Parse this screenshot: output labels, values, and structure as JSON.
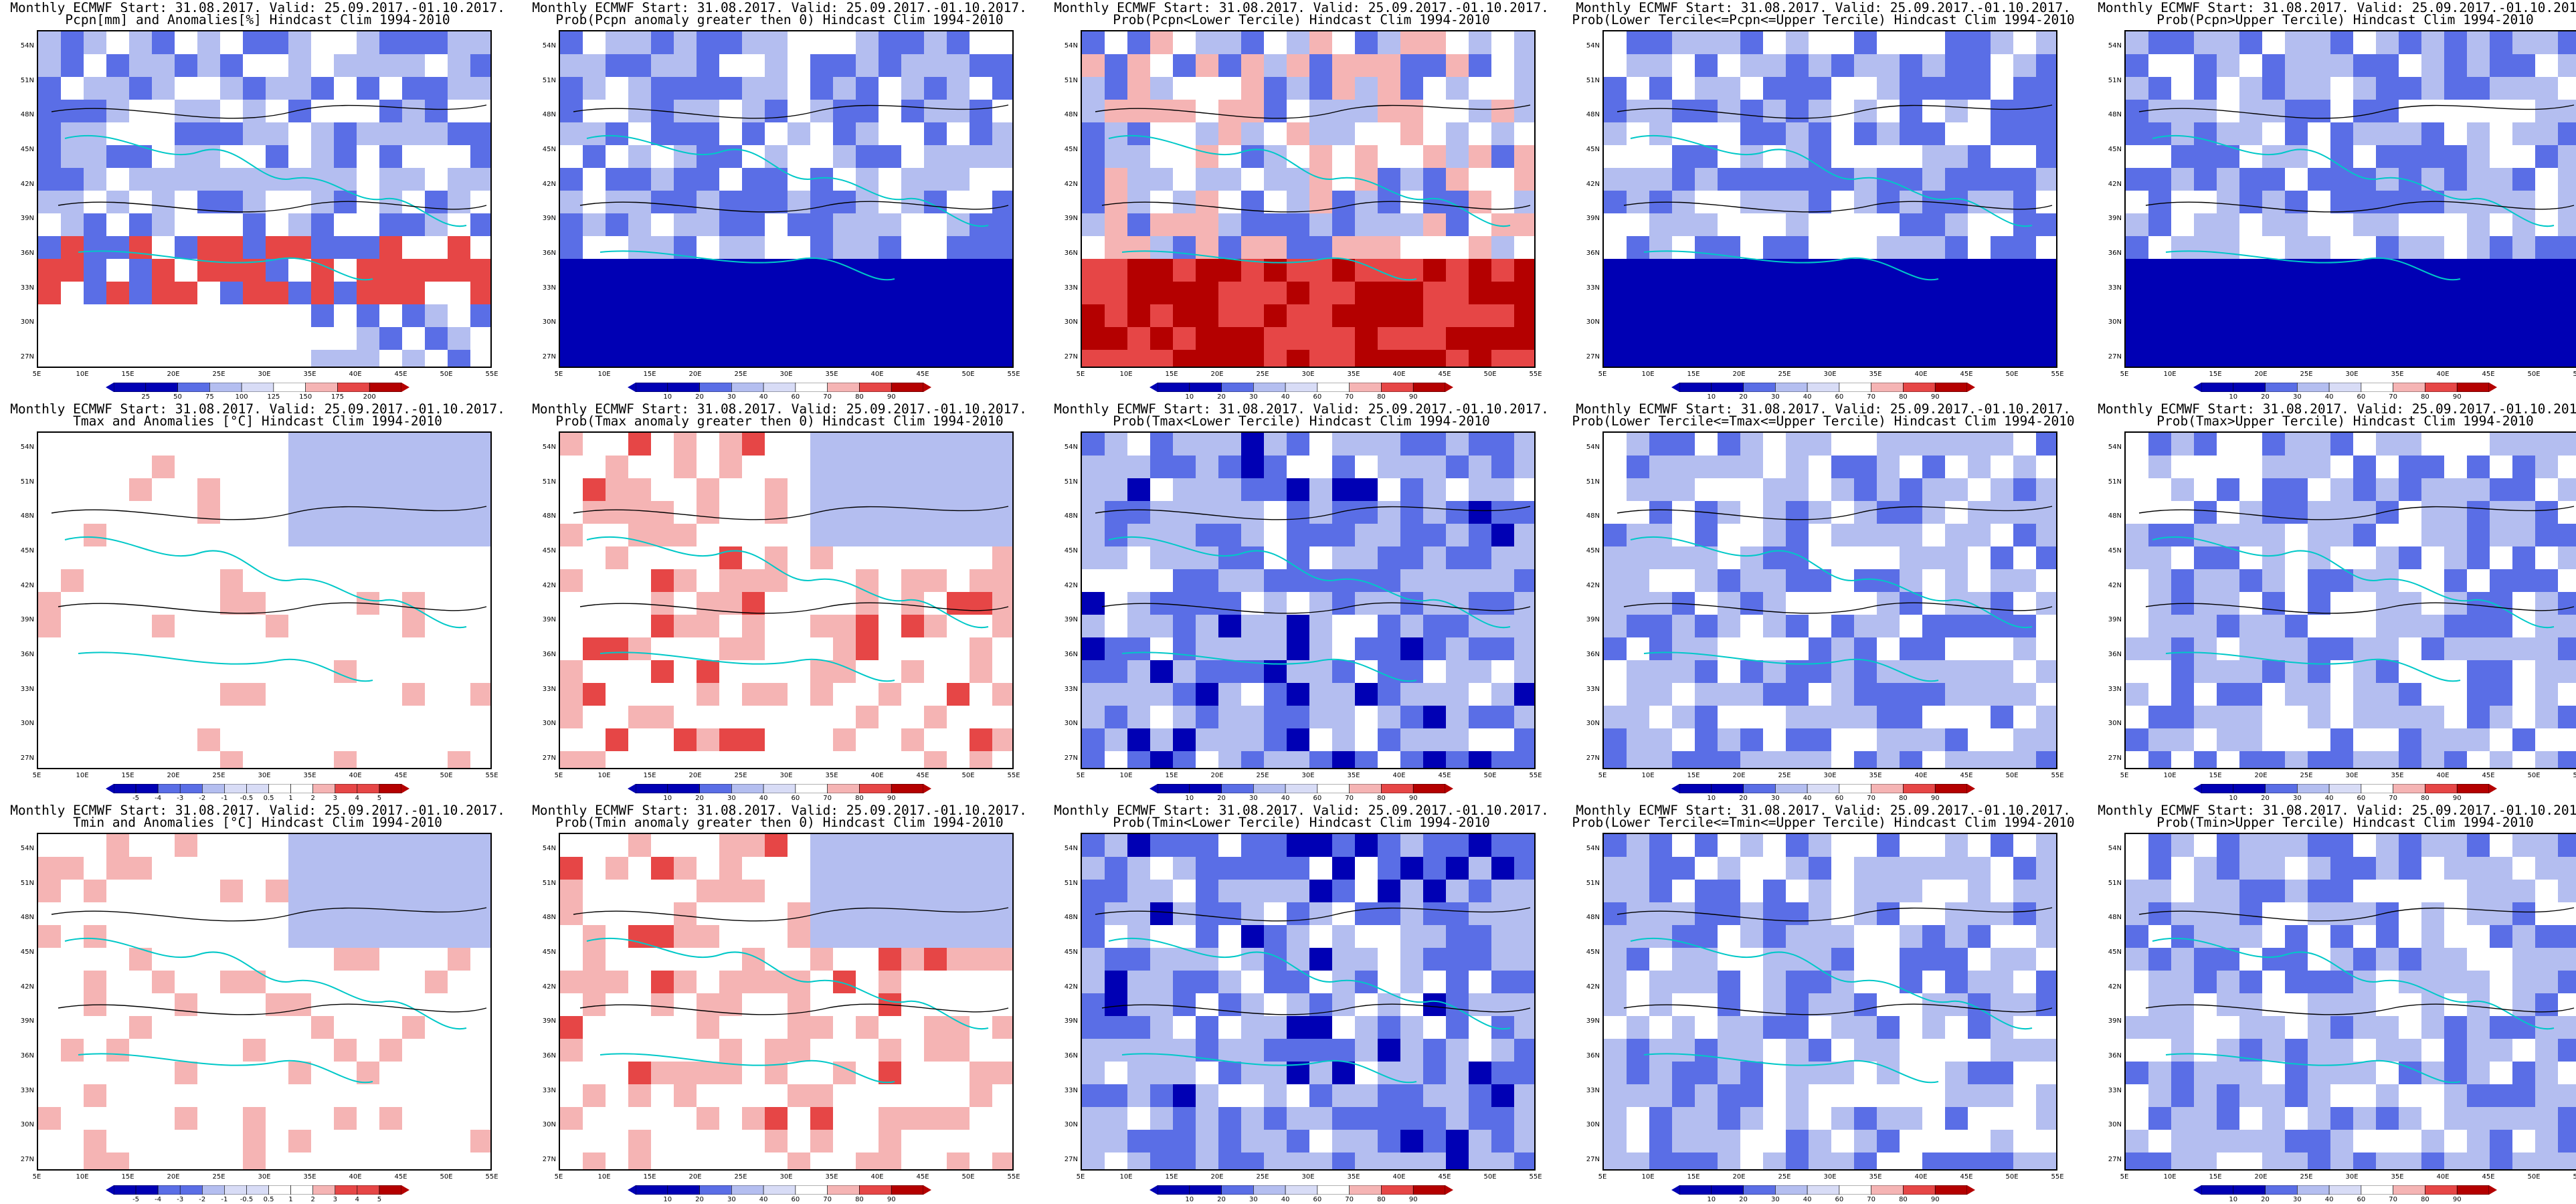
{
  "sheet": {
    "title_line1": "Monthly ECMWF Start: 31.08.2017. Valid: 25.09.2017.-01.10.2017."
  },
  "axes": {
    "lat_labels": [
      "54N",
      "51N",
      "48N",
      "45N",
      "42N",
      "39N",
      "36N",
      "33N",
      "30N",
      "27N"
    ],
    "lon_labels": [
      "5E",
      "10E",
      "15E",
      "20E",
      "25E",
      "30E",
      "35E",
      "40E",
      "45E",
      "50E",
      "55E"
    ]
  },
  "colors": {
    "land_border": "#00c8c8",
    "contour": "#000000",
    "deep_blue": "#0000b4",
    "mid_blue": "#5a6ee6",
    "light_blue": "#b4bef0",
    "white": "#ffffff",
    "light_red": "#f5b4b4",
    "mid_red": "#e64646",
    "deep_red": "#b40000"
  },
  "scales": {
    "pcpn": [
      "25",
      "50",
      "75",
      "100",
      "125",
      "150",
      "175",
      "200"
    ],
    "prob": [
      "10",
      "20",
      "30",
      "40",
      "60",
      "70",
      "80",
      "90"
    ],
    "temp": [
      "-5",
      "-4",
      "-3",
      "-2",
      "-1",
      "-0.5",
      "0.5",
      "1",
      "2",
      "3",
      "4",
      "5"
    ]
  },
  "panels": [
    {
      "title": "Pcpn[mm] and Anomalies[%] Hindcast Clim 1994-2010",
      "scale": "pcpn",
      "pattern": "pcpn_anom"
    },
    {
      "title": "Prob(Pcpn anomaly greater then 0) Hindcast Clim 1994-2010",
      "scale": "prob",
      "pattern": "prob_low_south"
    },
    {
      "title": "Prob(Pcpn<Lower Tercile) Hindcast Clim 1994-2010",
      "scale": "prob",
      "pattern": "prob_high_south"
    },
    {
      "title": "Prob(Lower Tercile<=Pcpn<=Upper Tercile) Hindcast Clim 1994-2010",
      "scale": "prob",
      "pattern": "prob_low_south"
    },
    {
      "title": "Prob(Pcpn>Upper Tercile) Hindcast Clim 1994-2010",
      "scale": "prob",
      "pattern": "prob_low_south"
    },
    {
      "title": "Tmax and Anomalies [°C] Hindcast Clim 1994-2010",
      "scale": "temp",
      "pattern": "temp_anom"
    },
    {
      "title": "Prob(Tmax anomaly greater then 0) Hindcast Clim 1994-2010",
      "scale": "prob",
      "pattern": "prob_mixed_red"
    },
    {
      "title": "Prob(Tmax<Lower Tercile) Hindcast Clim 1994-2010",
      "scale": "prob",
      "pattern": "prob_blue"
    },
    {
      "title": "Prob(Lower Tercile<=Tmax<=Upper Tercile) Hindcast Clim 1994-2010",
      "scale": "prob",
      "pattern": "prob_blue_light"
    },
    {
      "title": "Prob(Tmax>Upper Tercile) Hindcast Clim 1994-2010",
      "scale": "prob",
      "pattern": "prob_blue_light"
    },
    {
      "title": "Tmin and Anomalies [°C] Hindcast Clim 1994-2010",
      "scale": "temp",
      "pattern": "temp_anom"
    },
    {
      "title": "Prob(Tmin anomaly greater then 0) Hindcast Clim 1994-2010",
      "scale": "prob",
      "pattern": "prob_mixed_red"
    },
    {
      "title": "Prob(Tmin<Lower Tercile) Hindcast Clim 1994-2010",
      "scale": "prob",
      "pattern": "prob_blue"
    },
    {
      "title": "Prob(Lower Tercile<=Tmin<=Upper Tercile) Hindcast Clim 1994-2010",
      "scale": "prob",
      "pattern": "prob_blue_light"
    },
    {
      "title": "Prob(Tmin>Upper Tercile) Hindcast Clim 1994-2010",
      "scale": "prob",
      "pattern": "prob_blue_light"
    }
  ]
}
